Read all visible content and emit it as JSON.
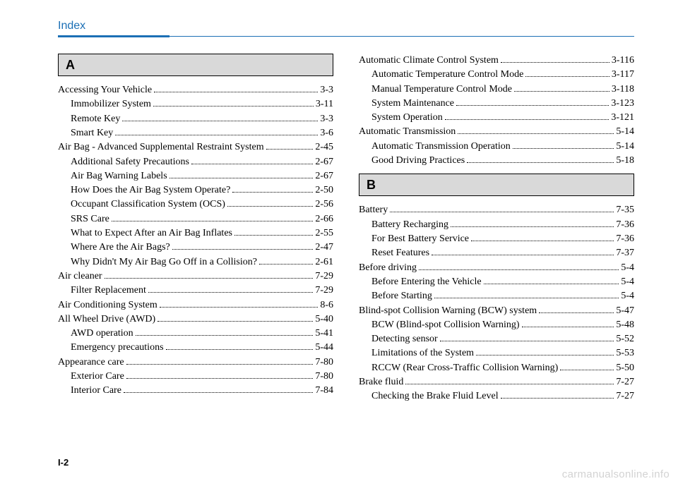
{
  "header": {
    "title": "Index"
  },
  "page_number": "I-2",
  "watermark": "carmanualsonline.info",
  "colors": {
    "accent": "#1b6fb5",
    "section_bg": "#d9d9d9",
    "text": "#000000",
    "watermark": "rgba(0,0,0,0.18)"
  },
  "left": {
    "letter": "A",
    "entries": [
      {
        "label": "Accessing Your Vehicle",
        "page": "3-3",
        "indent": 0
      },
      {
        "label": "Immobilizer System",
        "page": "3-11",
        "indent": 1
      },
      {
        "label": "Remote Key",
        "page": "3-3",
        "indent": 1
      },
      {
        "label": "Smart Key",
        "page": "3-6",
        "indent": 1
      },
      {
        "label": "Air Bag - Advanced Supplemental Restraint System",
        "page": "2-45",
        "indent": 0
      },
      {
        "label": "Additional Safety Precautions",
        "page": "2-67",
        "indent": 1
      },
      {
        "label": "Air Bag Warning Labels",
        "page": "2-67",
        "indent": 1
      },
      {
        "label": "How Does the Air Bag System Operate?",
        "page": "2-50",
        "indent": 1
      },
      {
        "label": "Occupant Classification System (OCS)",
        "page": "2-56",
        "indent": 1
      },
      {
        "label": "SRS Care",
        "page": "2-66",
        "indent": 1
      },
      {
        "label": "What to Expect After an Air Bag Inflates",
        "page": "2-55",
        "indent": 1
      },
      {
        "label": "Where Are the Air Bags?",
        "page": "2-47",
        "indent": 1
      },
      {
        "label": "Why Didn't My Air Bag Go Off in a Collision?",
        "page": "2-61",
        "indent": 1
      },
      {
        "label": "Air cleaner",
        "page": "7-29",
        "indent": 0
      },
      {
        "label": "Filter Replacement",
        "page": "7-29",
        "indent": 1
      },
      {
        "label": "Air Conditioning System",
        "page": "8-6",
        "indent": 0
      },
      {
        "label": "All Wheel Drive (AWD)",
        "page": "5-40",
        "indent": 0
      },
      {
        "label": "AWD operation",
        "page": "5-41",
        "indent": 1
      },
      {
        "label": "Emergency precautions",
        "page": "5-44",
        "indent": 1
      },
      {
        "label": "Appearance care",
        "page": "7-80",
        "indent": 0
      },
      {
        "label": "Exterior Care",
        "page": "7-80",
        "indent": 1
      },
      {
        "label": "Interior Care",
        "page": "7-84",
        "indent": 1
      }
    ]
  },
  "right": {
    "top_entries": [
      {
        "label": "Automatic Climate Control System",
        "page": "3-116",
        "indent": 0
      },
      {
        "label": "Automatic Temperature Control Mode",
        "page": "3-117",
        "indent": 1
      },
      {
        "label": "Manual Temperature Control Mode",
        "page": "3-118",
        "indent": 1
      },
      {
        "label": "System Maintenance",
        "page": "3-123",
        "indent": 1
      },
      {
        "label": "System Operation",
        "page": "3-121",
        "indent": 1
      },
      {
        "label": "Automatic Transmission",
        "page": "5-14",
        "indent": 0
      },
      {
        "label": "Automatic Transmission Operation",
        "page": "5-14",
        "indent": 1
      },
      {
        "label": "Good Driving Practices",
        "page": "5-18",
        "indent": 1
      }
    ],
    "letter": "B",
    "entries": [
      {
        "label": "Battery",
        "page": "7-35",
        "indent": 0
      },
      {
        "label": "Battery Recharging",
        "page": "7-36",
        "indent": 1
      },
      {
        "label": "For Best Battery Service",
        "page": "7-36",
        "indent": 1
      },
      {
        "label": "Reset Features",
        "page": "7-37",
        "indent": 1
      },
      {
        "label": "Before driving",
        "page": "5-4",
        "indent": 0
      },
      {
        "label": "Before Entering the Vehicle",
        "page": "5-4",
        "indent": 1
      },
      {
        "label": "Before Starting",
        "page": "5-4",
        "indent": 1
      },
      {
        "label": "Blind-spot Collision Warning (BCW) system",
        "page": "5-47",
        "indent": 0
      },
      {
        "label": "BCW (Blind-spot Collision Warning)",
        "page": "5-48",
        "indent": 1
      },
      {
        "label": "Detecting sensor",
        "page": "5-52",
        "indent": 1
      },
      {
        "label": "Limitations of the System",
        "page": "5-53",
        "indent": 1
      },
      {
        "label": "RCCW (Rear Cross-Traffic Collision Warning)",
        "page": "5-50",
        "indent": 1
      },
      {
        "label": "Brake fluid",
        "page": "7-27",
        "indent": 0
      },
      {
        "label": "Checking the Brake Fluid Level",
        "page": "7-27",
        "indent": 1
      }
    ]
  }
}
